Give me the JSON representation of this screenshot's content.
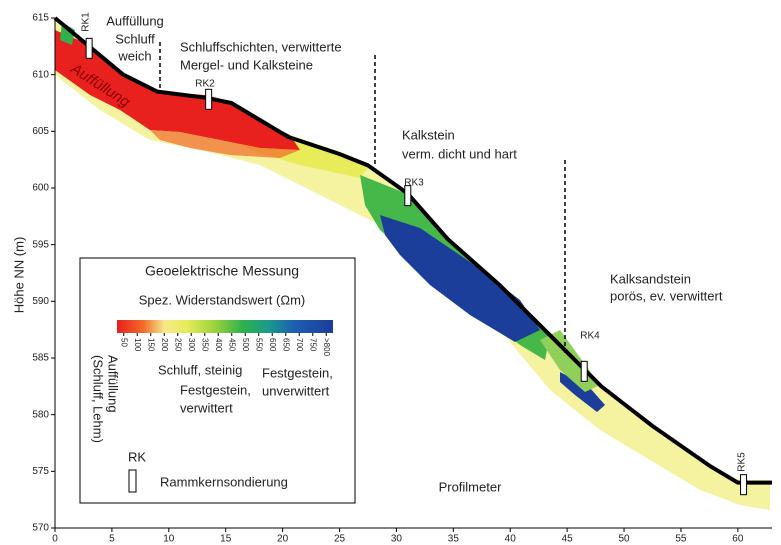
{
  "chart_data": {
    "type": "line",
    "x_label": "Profilmeter",
    "y_label": "Höhe NN (m)",
    "xlim": [
      0,
      63
    ],
    "xticks": [
      0,
      5,
      10,
      15,
      20,
      25,
      30,
      35,
      40,
      45,
      50,
      55,
      60
    ],
    "ylim": [
      570,
      615
    ],
    "yticks": [
      570,
      575,
      580,
      585,
      590,
      595,
      600,
      605,
      610,
      615
    ],
    "color": "#000000",
    "x": [
      0,
      3,
      6,
      9,
      13,
      15.5,
      18,
      20.5,
      25,
      27.5,
      31,
      34.5,
      39,
      43.5,
      48,
      52.5,
      57.5,
      60,
      63
    ],
    "values": [
      615,
      612.5,
      610,
      608.5,
      608,
      607.5,
      606,
      604.5,
      603,
      602,
      599.5,
      595.5,
      591.5,
      587,
      582.5,
      579,
      575.5,
      574,
      574
    ],
    "boreholes": [
      {
        "label": "RK1",
        "x": 3,
        "y": 612.5
      },
      {
        "label": "RK2",
        "x": 13.5,
        "y": 608
      },
      {
        "label": "RK3",
        "x": 31,
        "y": 599.5
      },
      {
        "label": "RK4",
        "x": 46.5,
        "y": 584
      },
      {
        "label": "RK5",
        "x": 60.5,
        "y": 574
      }
    ],
    "annotations": [
      {
        "text": [
          "Auffüllung",
          "Schluff",
          "weich"
        ]
      },
      {
        "text": [
          "Schluffschichten, verwitterte",
          "Mergel- und Kalksteine"
        ]
      },
      {
        "text": [
          "Kalkstein",
          "verm. dicht und hart"
        ]
      },
      {
        "text": [
          "Kalksandstein",
          "porös, ev. verwittert"
        ]
      },
      {
        "text": [
          "Auffüllung"
        ]
      }
    ],
    "legend": {
      "title": "Geoelektrische Messung",
      "subtitle": "Spez. Widerstandswert (Ωm)",
      "ticks": [
        50,
        100,
        150,
        200,
        250,
        300,
        350,
        400,
        450,
        500,
        550,
        600,
        650,
        700,
        750,
        {
          "value": 800,
          "label": ">800"
        }
      ],
      "classes": [
        [
          "Auffüllung",
          "(Schluff, Lehm)"
        ],
        [
          "Schluff, steinig"
        ],
        [
          "Festgestein,",
          "verwittert"
        ],
        [
          "Festgestein,",
          "unverwittert"
        ]
      ],
      "symbol": "RK",
      "symbol_text": "Rammkernsondierung"
    }
  }
}
